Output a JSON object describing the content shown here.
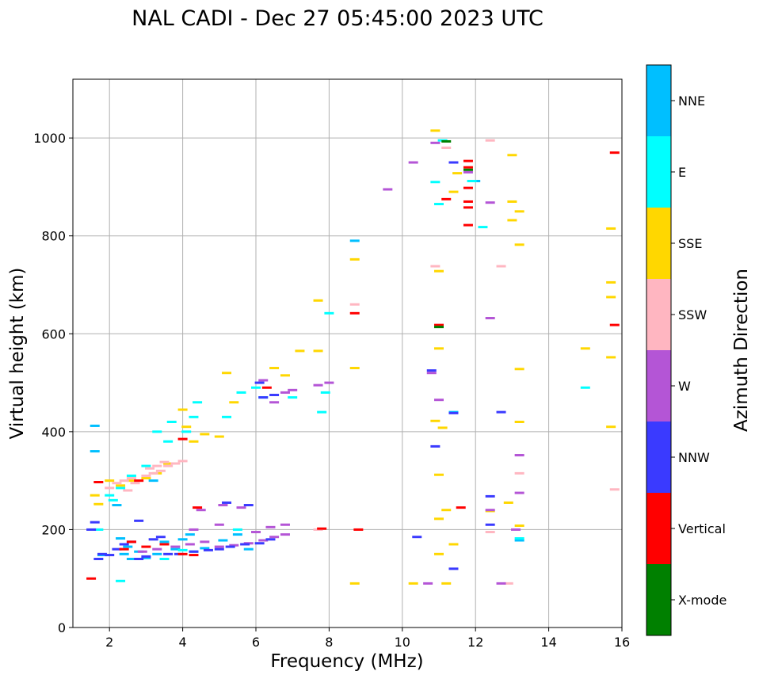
{
  "chart_data": {
    "type": "scatter",
    "title": "NAL CADI - Dec 27 05:45:00 2023 UTC",
    "xlabel": "Frequency (MHz)",
    "ylabel": "Virtual height (km)",
    "xlim": [
      1,
      16
    ],
    "ylim": [
      0,
      1120
    ],
    "xticks": [
      2,
      4,
      6,
      8,
      10,
      12,
      14,
      16
    ],
    "yticks": [
      0,
      200,
      400,
      600,
      800,
      1000
    ],
    "grid": true,
    "colorbar": {
      "label": "Azimuth Direction",
      "categories": [
        "X-mode",
        "Vertical",
        "NNW",
        "W",
        "SSW",
        "SSE",
        "E",
        "NNE"
      ],
      "colors": [
        "#008000",
        "#ff0000",
        "#3a3aff",
        "#b455d6",
        "#ffb6c1",
        "#ffd700",
        "#00ffff",
        "#00bfff"
      ]
    },
    "series": [
      {
        "name": "NNE",
        "points": [
          [
            1.6,
            412
          ],
          [
            1.6,
            360
          ],
          [
            1.8,
            148
          ],
          [
            2.2,
            250
          ],
          [
            2.3,
            182
          ],
          [
            2.5,
            165
          ],
          [
            2.4,
            150
          ],
          [
            2.6,
            140
          ],
          [
            2.8,
            155
          ],
          [
            3.0,
            142
          ],
          [
            3.3,
            150
          ],
          [
            3.5,
            175
          ],
          [
            3.8,
            160
          ],
          [
            4.0,
            180
          ],
          [
            4.2,
            190
          ],
          [
            4.3,
            155
          ],
          [
            4.6,
            162
          ],
          [
            5.1,
            178
          ],
          [
            5.5,
            190
          ],
          [
            5.8,
            160
          ],
          [
            3.2,
            300
          ],
          [
            8.7,
            790
          ],
          [
            11.4,
            440
          ],
          [
            12.0,
            912
          ],
          [
            13.2,
            178
          ]
        ]
      },
      {
        "name": "E",
        "points": [
          [
            1.7,
            200
          ],
          [
            2.0,
            270
          ],
          [
            2.1,
            260
          ],
          [
            2.3,
            285
          ],
          [
            2.6,
            310
          ],
          [
            3.0,
            330
          ],
          [
            3.3,
            400
          ],
          [
            3.6,
            380
          ],
          [
            3.7,
            420
          ],
          [
            4.1,
            400
          ],
          [
            4.3,
            430
          ],
          [
            4.4,
            460
          ],
          [
            5.2,
            430
          ],
          [
            5.6,
            480
          ],
          [
            6.0,
            490
          ],
          [
            6.2,
            470
          ],
          [
            7.0,
            470
          ],
          [
            7.8,
            440
          ],
          [
            7.9,
            480
          ],
          [
            3.5,
            140
          ],
          [
            4.0,
            158
          ],
          [
            5.5,
            200
          ],
          [
            2.3,
            95
          ],
          [
            10.9,
            910
          ],
          [
            11.0,
            865
          ],
          [
            11.1,
            995
          ],
          [
            11.9,
            912
          ],
          [
            12.2,
            818
          ],
          [
            15.0,
            490
          ],
          [
            13.2,
            182
          ],
          [
            8.0,
            642
          ]
        ]
      },
      {
        "name": "SSE",
        "points": [
          [
            1.6,
            270
          ],
          [
            1.7,
            252
          ],
          [
            2.0,
            300
          ],
          [
            2.3,
            290
          ],
          [
            2.6,
            300
          ],
          [
            3.0,
            305
          ],
          [
            3.3,
            315
          ],
          [
            3.6,
            335
          ],
          [
            4.0,
            445
          ],
          [
            4.1,
            410
          ],
          [
            4.3,
            380
          ],
          [
            4.6,
            395
          ],
          [
            5.0,
            390
          ],
          [
            5.2,
            520
          ],
          [
            5.4,
            460
          ],
          [
            6.5,
            530
          ],
          [
            6.8,
            515
          ],
          [
            7.2,
            565
          ],
          [
            7.7,
            565
          ],
          [
            7.7,
            668
          ],
          [
            8.7,
            752
          ],
          [
            8.7,
            530
          ],
          [
            8.7,
            90
          ],
          [
            10.3,
            90
          ],
          [
            10.9,
            1015
          ],
          [
            10.9,
            422
          ],
          [
            11.0,
            728
          ],
          [
            11.0,
            570
          ],
          [
            11.0,
            312
          ],
          [
            11.0,
            150
          ],
          [
            11.1,
            408
          ],
          [
            11.0,
            222
          ],
          [
            11.2,
            240
          ],
          [
            11.4,
            170
          ],
          [
            11.4,
            890
          ],
          [
            11.5,
            928
          ],
          [
            12.4,
            238
          ],
          [
            12.9,
            255
          ],
          [
            13.0,
            965
          ],
          [
            13.0,
            870
          ],
          [
            13.0,
            832
          ],
          [
            13.2,
            850
          ],
          [
            13.2,
            782
          ],
          [
            13.2,
            528
          ],
          [
            13.2,
            420
          ],
          [
            13.2,
            208
          ],
          [
            15.0,
            570
          ],
          [
            15.7,
            815
          ],
          [
            15.7,
            705
          ],
          [
            15.7,
            675
          ],
          [
            15.7,
            552
          ],
          [
            15.7,
            410
          ],
          [
            11.2,
            90
          ]
        ]
      },
      {
        "name": "SSW",
        "points": [
          [
            2.0,
            285
          ],
          [
            2.2,
            295
          ],
          [
            2.4,
            300
          ],
          [
            2.6,
            305
          ],
          [
            2.8,
            300
          ],
          [
            3.0,
            310
          ],
          [
            3.2,
            315
          ],
          [
            3.4,
            320
          ],
          [
            3.6,
            330
          ],
          [
            3.8,
            335
          ],
          [
            4.0,
            340
          ],
          [
            2.5,
            280
          ],
          [
            2.7,
            295
          ],
          [
            3.1,
            325
          ],
          [
            3.3,
            330
          ],
          [
            3.5,
            338
          ],
          [
            7.7,
            200
          ],
          [
            8.7,
            660
          ],
          [
            10.9,
            738
          ],
          [
            11.2,
            980
          ],
          [
            12.4,
            995
          ],
          [
            12.7,
            738
          ],
          [
            12.4,
            195
          ],
          [
            12.9,
            90
          ],
          [
            13.2,
            315
          ],
          [
            15.8,
            282
          ]
        ]
      },
      {
        "name": "W",
        "points": [
          [
            2.9,
            155
          ],
          [
            3.3,
            160
          ],
          [
            3.8,
            165
          ],
          [
            4.2,
            170
          ],
          [
            4.6,
            175
          ],
          [
            5.0,
            165
          ],
          [
            5.4,
            168
          ],
          [
            5.8,
            172
          ],
          [
            6.2,
            178
          ],
          [
            6.5,
            185
          ],
          [
            6.8,
            190
          ],
          [
            6.0,
            195
          ],
          [
            6.4,
            205
          ],
          [
            6.8,
            210
          ],
          [
            4.5,
            240
          ],
          [
            5.1,
            250
          ],
          [
            5.6,
            245
          ],
          [
            4.3,
            200
          ],
          [
            5.0,
            210
          ],
          [
            6.5,
            460
          ],
          [
            7.0,
            485
          ],
          [
            7.7,
            495
          ],
          [
            8.0,
            500
          ],
          [
            6.2,
            505
          ],
          [
            6.8,
            480
          ],
          [
            10.9,
            990
          ],
          [
            10.3,
            950
          ],
          [
            11.0,
            465
          ],
          [
            10.8,
            520
          ],
          [
            11.8,
            930
          ],
          [
            12.4,
            868
          ],
          [
            12.4,
            632
          ],
          [
            12.4,
            240
          ],
          [
            13.1,
            200
          ],
          [
            13.2,
            352
          ],
          [
            13.2,
            275
          ],
          [
            12.7,
            90
          ],
          [
            10.7,
            90
          ],
          [
            9.6,
            895
          ]
        ]
      },
      {
        "name": "NNW",
        "points": [
          [
            1.7,
            140
          ],
          [
            1.8,
            150
          ],
          [
            2.0,
            148
          ],
          [
            2.2,
            160
          ],
          [
            2.4,
            170
          ],
          [
            2.6,
            175
          ],
          [
            2.8,
            140
          ],
          [
            3.0,
            145
          ],
          [
            3.2,
            180
          ],
          [
            3.4,
            185
          ],
          [
            3.6,
            150
          ],
          [
            3.9,
            150
          ],
          [
            4.3,
            155
          ],
          [
            4.7,
            158
          ],
          [
            5.0,
            160
          ],
          [
            5.3,
            165
          ],
          [
            5.7,
            170
          ],
          [
            6.1,
            172
          ],
          [
            6.4,
            180
          ],
          [
            6.2,
            470
          ],
          [
            6.5,
            475
          ],
          [
            6.1,
            500
          ],
          [
            5.2,
            255
          ],
          [
            5.8,
            250
          ],
          [
            2.8,
            218
          ],
          [
            1.6,
            215
          ],
          [
            1.5,
            200
          ],
          [
            10.8,
            525
          ],
          [
            10.9,
            370
          ],
          [
            10.4,
            185
          ],
          [
            11.4,
            950
          ],
          [
            11.4,
            438
          ],
          [
            11.4,
            120
          ],
          [
            12.4,
            268
          ],
          [
            12.4,
            210
          ],
          [
            12.7,
            440
          ]
        ]
      },
      {
        "name": "Vertical",
        "points": [
          [
            2.4,
            160
          ],
          [
            3.0,
            165
          ],
          [
            3.5,
            170
          ],
          [
            4.0,
            150
          ],
          [
            4.3,
            148
          ],
          [
            2.6,
            175
          ],
          [
            4.4,
            245
          ],
          [
            2.8,
            300
          ],
          [
            1.5,
            100
          ],
          [
            1.7,
            297
          ],
          [
            4.0,
            385
          ],
          [
            6.3,
            490
          ],
          [
            8.7,
            642
          ],
          [
            8.8,
            200
          ],
          [
            7.8,
            202
          ],
          [
            11.0,
            618
          ],
          [
            11.2,
            875
          ],
          [
            11.8,
            953
          ],
          [
            11.8,
            898
          ],
          [
            11.8,
            870
          ],
          [
            11.8,
            858
          ],
          [
            11.8,
            822
          ],
          [
            11.6,
            245
          ],
          [
            15.8,
            970
          ],
          [
            15.8,
            618
          ],
          [
            11.8,
            940
          ]
        ]
      },
      {
        "name": "X-mode",
        "points": [
          [
            11.2,
            993
          ],
          [
            11.0,
            614
          ],
          [
            11.8,
            935
          ]
        ]
      }
    ]
  }
}
